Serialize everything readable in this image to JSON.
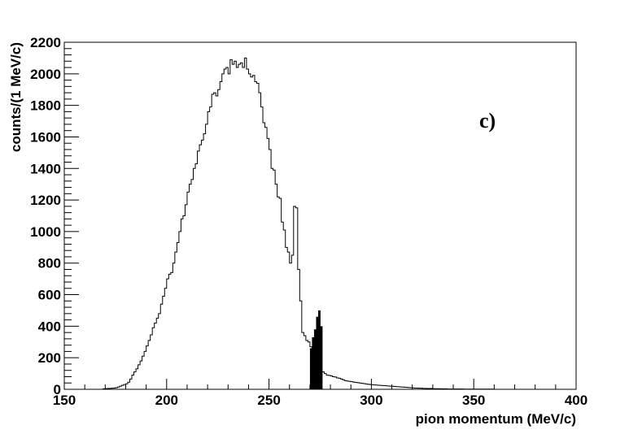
{
  "chart_data": {
    "type": "histogram",
    "title": "",
    "xlabel": "pion momentum (MeV/c)",
    "ylabel": "counts/(1 MeV/c)",
    "annotation": "c)",
    "xlim": [
      150,
      400
    ],
    "ylim": [
      0,
      2200
    ],
    "x_ticks": [
      150,
      200,
      250,
      300,
      350,
      400
    ],
    "y_ticks": [
      0,
      200,
      400,
      600,
      800,
      1000,
      1200,
      1400,
      1600,
      1800,
      2000,
      2200
    ],
    "x_tick_labels": [
      "150",
      "200",
      "250",
      "300",
      "350",
      "400"
    ],
    "y_tick_labels": [
      "0",
      "200",
      "400",
      "600",
      "800",
      "1000",
      "1200",
      "1400",
      "1600",
      "1800",
      "2000",
      "2200"
    ],
    "grid": false,
    "bin_width": 1,
    "series": [
      {
        "style": "step-outline",
        "color": "#000000",
        "bins_start": 169,
        "values": [
          3,
          4,
          5,
          6,
          7,
          8,
          10,
          14,
          20,
          25,
          30,
          35,
          45,
          65,
          90,
          110,
          130,
          155,
          180,
          210,
          240,
          275,
          310,
          345,
          390,
          420,
          450,
          480,
          540,
          590,
          640,
          700,
          730,
          740,
          800,
          870,
          930,
          1000,
          1080,
          1100,
          1170,
          1250,
          1300,
          1330,
          1400,
          1430,
          1510,
          1550,
          1580,
          1620,
          1680,
          1760,
          1790,
          1870,
          1880,
          1860,
          1900,
          1950,
          2000,
          2030,
          2040,
          2000,
          2090,
          2060,
          2080,
          2040,
          2060,
          2070,
          2040,
          2100,
          2030,
          2000,
          1980,
          1990,
          1950,
          1940,
          1880,
          1790,
          1690,
          1660,
          1590,
          1520,
          1400,
          1390,
          1300,
          1220,
          1210,
          1060,
          1010,
          900,
          870,
          800,
          850,
          1160,
          1150,
          760,
          560,
          360,
          340,
          310,
          300,
          270,
          240,
          180,
          150,
          140,
          120,
          110,
          100,
          90,
          88,
          85,
          80,
          78,
          72,
          70,
          65,
          60,
          55,
          52,
          50,
          48,
          46,
          44,
          42,
          40,
          38,
          36,
          34,
          32,
          30,
          29,
          28,
          27,
          26,
          25,
          24,
          23,
          22,
          21,
          20,
          19,
          18,
          17,
          16,
          15,
          14,
          13,
          12,
          11,
          10,
          9,
          8,
          8,
          7,
          7,
          6,
          6,
          5,
          5,
          5,
          4,
          4,
          4,
          3,
          3,
          3,
          3,
          2,
          2,
          2,
          2,
          2,
          2,
          2,
          2,
          1,
          1,
          1,
          1,
          1,
          1,
          1,
          1,
          1,
          1,
          1,
          1,
          1,
          1,
          1
        ]
      },
      {
        "style": "filled",
        "color": "#000000",
        "bins_start": 270,
        "values": [
          260,
          330,
          380,
          460,
          500,
          400
        ]
      }
    ]
  }
}
